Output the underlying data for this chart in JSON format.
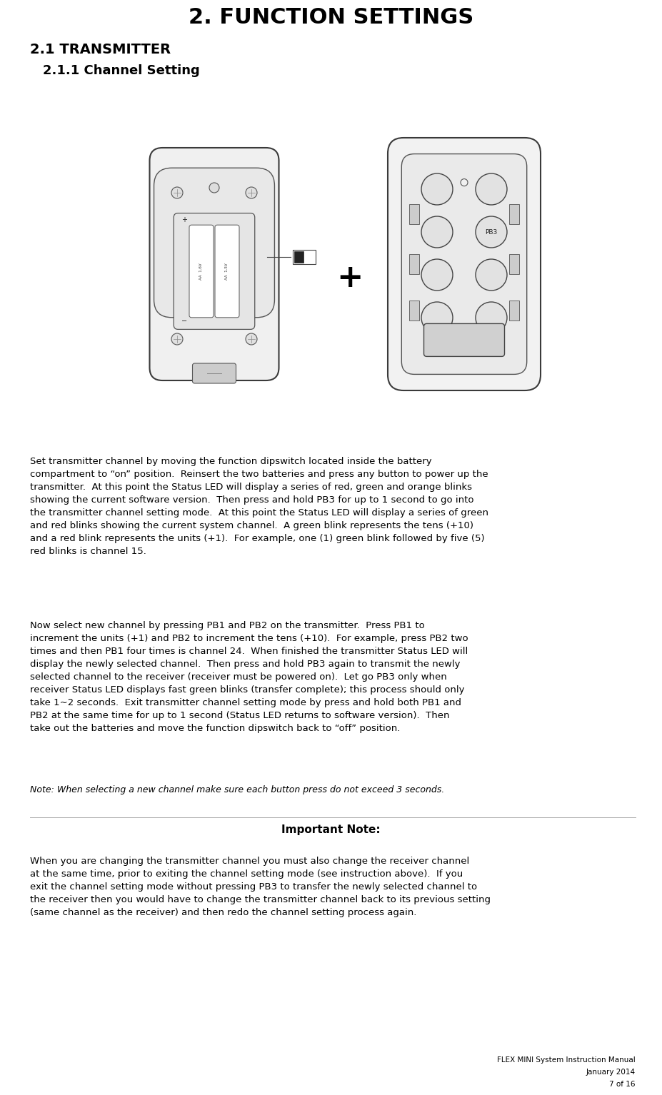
{
  "title": "2. FUNCTION SETTINGS",
  "section1": "2.1 TRANSMITTER",
  "section11": "2.1.1 Channel Setting",
  "body1": "Set transmitter channel by moving the function dipswitch located inside the battery\ncompartment to “on” position.  Reinsert the two batteries and press any button to power up the\ntransmitter.  At this point the Status LED will display a series of red, green and orange blinks\nshowing the current software version.  Then press and hold PB3 for up to 1 second to go into\nthe transmitter channel setting mode.  At this point the Status LED will display a series of green\nand red blinks showing the current system channel.  A green blink represents the tens (+10)\nand a red blink represents the units (+1).  For example, one (1) green blink followed by five (5)\nred blinks is channel 15.",
  "body2": "Now select new channel by pressing PB1 and PB2 on the transmitter.  Press PB1 to\nincrement the units (+1) and PB2 to increment the tens (+10).  For example, press PB2 two\ntimes and then PB1 four times is channel 24.  When finished the transmitter Status LED will\ndisplay the newly selected channel.  Then press and hold PB3 again to transmit the newly\nselected channel to the receiver (receiver must be powered on).  Let go PB3 only when\nreceiver Status LED displays fast green blinks (transfer complete); this process should only\ntake 1~2 seconds.  Exit transmitter channel setting mode by press and hold both PB1 and\nPB2 at the same time for up to 1 second (Status LED returns to software version).  Then\ntake out the batteries and move the function dipswitch back to “off” position.",
  "note": "Note: When selecting a new channel make sure each button press do not exceed 3 seconds.",
  "important_title": "Important Note:",
  "important_body": "When you are changing the transmitter channel you must also change the receiver channel\nat the same time, prior to exiting the channel setting mode (see instruction above).  If you\nexit the channel setting mode without pressing PB3 to transfer the newly selected channel to\nthe receiver then you would have to change the transmitter channel back to its previous setting\n(same channel as the receiver) and then redo the channel setting process again.",
  "footer1": "FLEX MINI System Instruction Manual",
  "footer2": "January 2014",
  "footer3": "7 of 16",
  "bg_color": "#ffffff",
  "text_color": "#000000",
  "title_fontsize": 22,
  "section1_fontsize": 14,
  "section11_fontsize": 13,
  "body_fontsize": 9.5,
  "note_fontsize": 9.0,
  "imp_title_fontsize": 11,
  "footer_fontsize": 7.5
}
